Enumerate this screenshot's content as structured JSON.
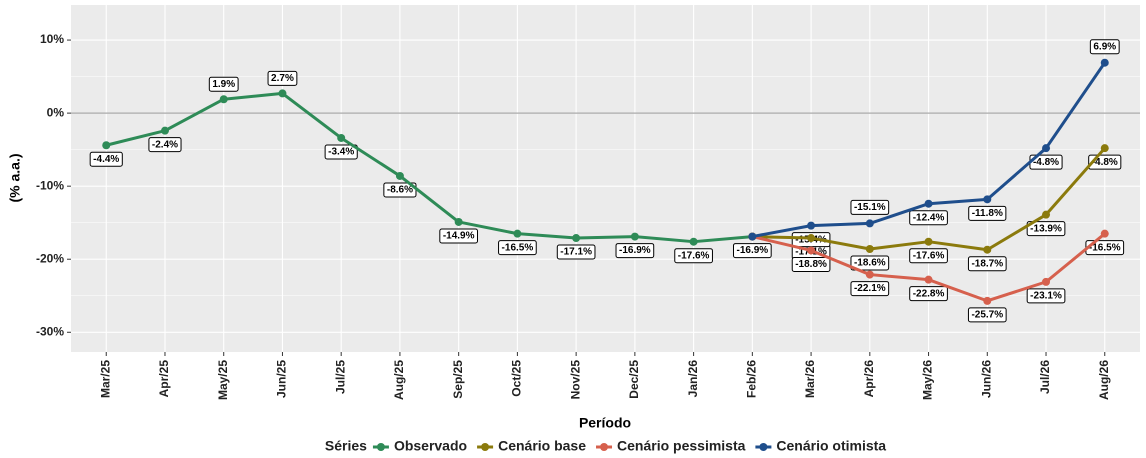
{
  "chart_data": {
    "type": "line",
    "x_label": "Período",
    "y_label": "(% a.a.)",
    "legend_title": "Séries",
    "categories": [
      "Mar/25",
      "Apr/25",
      "May/25",
      "Jun/25",
      "Jul/25",
      "Aug/25",
      "Sep/25",
      "Oct/25",
      "Nov/25",
      "Dec/25",
      "Jan/26",
      "Feb/26",
      "Mar/26",
      "Apr/26",
      "May/26",
      "Jun/26",
      "Jul/26",
      "Aug/26"
    ],
    "series": [
      {
        "name": "Observado",
        "color": "#2e8b57",
        "values": [
          -4.4,
          -2.4,
          1.9,
          2.7,
          -3.4,
          -8.6,
          -14.9,
          -16.5,
          -17.1,
          -16.9,
          -17.6,
          -16.9,
          null,
          null,
          null,
          null,
          null,
          null
        ],
        "value_labels": [
          "-4.4%",
          "-2.4%",
          "1.9%",
          "2.7%",
          "-3.4%",
          "-8.6%",
          "-14.9%",
          "-16.5%",
          "-17.1%",
          "-16.9%",
          "-17.6%",
          "-16.9%",
          null,
          null,
          null,
          null,
          null,
          null
        ]
      },
      {
        "name": "Cenário base",
        "color": "#8b7a0c",
        "values": [
          null,
          null,
          null,
          null,
          null,
          null,
          null,
          null,
          null,
          null,
          null,
          -16.9,
          -17.1,
          -18.6,
          -17.6,
          -18.7,
          -13.9,
          -4.8
        ],
        "value_labels": [
          null,
          null,
          null,
          null,
          null,
          null,
          null,
          null,
          null,
          null,
          null,
          null,
          "-17.1%",
          "-18.6%",
          "-17.6%",
          "-18.7%",
          "-13.9%",
          "-4.8%"
        ]
      },
      {
        "name": "Cenário pessimista",
        "color": "#d6604d",
        "values": [
          null,
          null,
          null,
          null,
          null,
          null,
          null,
          null,
          null,
          null,
          null,
          -16.9,
          -18.8,
          -22.1,
          -22.8,
          -25.7,
          -23.1,
          -16.5
        ],
        "value_labels": [
          null,
          null,
          null,
          null,
          null,
          null,
          null,
          null,
          null,
          null,
          null,
          null,
          "-18.8%",
          "-22.1%",
          "-22.8%",
          "-25.7%",
          "-23.1%",
          "-16.5%"
        ]
      },
      {
        "name": "Cenário otimista",
        "color": "#1f4e8c",
        "values": [
          null,
          null,
          null,
          null,
          null,
          null,
          null,
          null,
          null,
          null,
          null,
          -16.9,
          -15.4,
          -15.1,
          -12.4,
          -11.8,
          -4.8,
          6.9
        ],
        "value_labels": [
          null,
          null,
          null,
          null,
          null,
          null,
          null,
          null,
          null,
          null,
          null,
          null,
          "-15.4%",
          "-15.1%",
          "-12.4%",
          "-11.8%",
          "-4.8%",
          "6.9%"
        ]
      }
    ],
    "reference_line": 0,
    "ylim": [
      -32.7,
      14.8
    ],
    "yticks": [
      {
        "value": 10,
        "label": "10%"
      },
      {
        "value": 0,
        "label": "0%"
      },
      {
        "value": -10,
        "label": "-10%"
      },
      {
        "value": -20,
        "label": "-20%"
      },
      {
        "value": -30,
        "label": "-30%"
      }
    ],
    "grid": true,
    "legend_position": "bottom"
  }
}
